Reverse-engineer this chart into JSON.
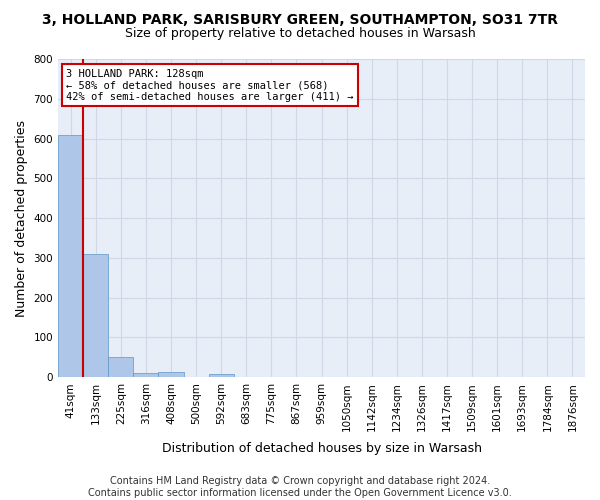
{
  "title": "3, HOLLAND PARK, SARISBURY GREEN, SOUTHAMPTON, SO31 7TR",
  "subtitle": "Size of property relative to detached houses in Warsash",
  "xlabel": "Distribution of detached houses by size in Warsash",
  "ylabel": "Number of detached properties",
  "footer_line1": "Contains HM Land Registry data © Crown copyright and database right 2024.",
  "footer_line2": "Contains public sector information licensed under the Open Government Licence v3.0.",
  "bin_labels": [
    "41sqm",
    "133sqm",
    "225sqm",
    "316sqm",
    "408sqm",
    "500sqm",
    "592sqm",
    "683sqm",
    "775sqm",
    "867sqm",
    "959sqm",
    "1050sqm",
    "1142sqm",
    "1234sqm",
    "1326sqm",
    "1417sqm",
    "1509sqm",
    "1601sqm",
    "1693sqm",
    "1784sqm",
    "1876sqm"
  ],
  "bar_heights": [
    608,
    311,
    52,
    12,
    13,
    0,
    8,
    0,
    0,
    0,
    0,
    0,
    0,
    0,
    0,
    0,
    0,
    0,
    0,
    0,
    0
  ],
  "bar_color": "#aec6e8",
  "bar_edge_color": "#5a96c8",
  "annotation_title": "3 HOLLAND PARK: 128sqm",
  "annotation_line1": "← 58% of detached houses are smaller (568)",
  "annotation_line2": "42% of semi-detached houses are larger (411) →",
  "vline_color": "#cc0000",
  "annotation_box_color": "#cc0000",
  "ylim": [
    0,
    800
  ],
  "yticks": [
    0,
    100,
    200,
    300,
    400,
    500,
    600,
    700,
    800
  ],
  "grid_color": "#d0d8e8",
  "background_color": "#e8eef8",
  "title_fontsize": 10,
  "subtitle_fontsize": 9,
  "tick_fontsize": 7.5,
  "ylabel_fontsize": 9,
  "xlabel_fontsize": 9,
  "footer_fontsize": 7
}
